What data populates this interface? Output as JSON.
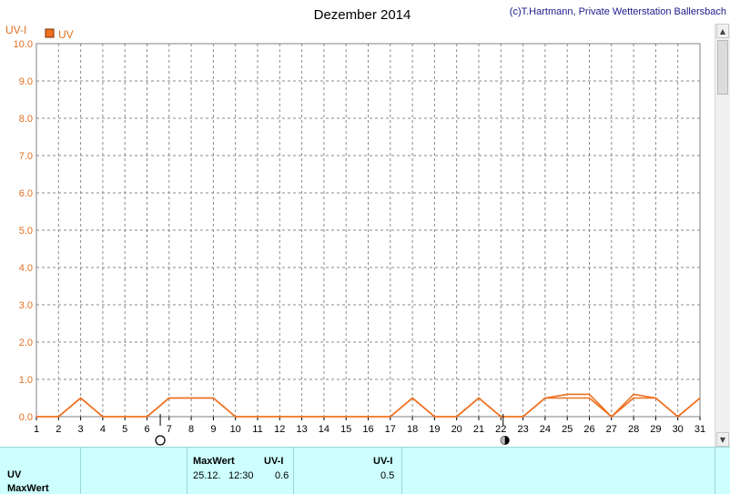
{
  "chart_data": {
    "type": "line",
    "title": "Dezember 2014",
    "copyright": "(c)T.Hartmann, Private Wetterstation Ballersbach",
    "ylabel": "UV-I",
    "ylim": [
      0,
      10
    ],
    "yticks": [
      "0.0",
      "1.0",
      "2.0",
      "3.0",
      "4.0",
      "5.0",
      "6.0",
      "7.0",
      "8.0",
      "9.0",
      "10.0"
    ],
    "xlim": [
      1,
      31
    ],
    "xticks": [
      "1",
      "2",
      "3",
      "4",
      "5",
      "6",
      "7",
      "8",
      "9",
      "10",
      "11",
      "12",
      "13",
      "14",
      "15",
      "16",
      "17",
      "18",
      "19",
      "20",
      "21",
      "22",
      "23",
      "24",
      "25",
      "26",
      "27",
      "28",
      "29",
      "30",
      "31"
    ],
    "grid": true,
    "legend": "top-left",
    "moon_phases": [
      {
        "day": 6.6,
        "phase": "full-moon"
      },
      {
        "day": 22.1,
        "phase": "new-moon"
      }
    ],
    "series": [
      {
        "name": "UV",
        "color": "#f07020",
        "x": [
          1,
          2,
          3,
          4,
          5,
          6,
          7,
          8,
          9,
          10,
          11,
          12,
          13,
          14,
          15,
          16,
          17,
          18,
          19,
          20,
          21,
          22,
          23,
          24,
          25,
          26,
          27,
          28,
          29,
          30,
          31
        ],
        "y": [
          0,
          0,
          0.5,
          0,
          0,
          0,
          0.5,
          0.5,
          0.5,
          0,
          0,
          0,
          0,
          0,
          0,
          0,
          0,
          0.5,
          0,
          0,
          0.5,
          0,
          0,
          0.5,
          0.6,
          0.6,
          0,
          0.6,
          0.5,
          0,
          0.5
        ]
      },
      {
        "color": "#f07020",
        "x": [
          1,
          2,
          3,
          4,
          5,
          6,
          7,
          8,
          9,
          10,
          11,
          12,
          13,
          14,
          15,
          16,
          17,
          18,
          19,
          20,
          21,
          22,
          23,
          24,
          25,
          26,
          27,
          28,
          29,
          30,
          31
        ],
        "y": [
          0,
          0,
          0.5,
          0,
          0,
          0,
          0.5,
          0.5,
          0.5,
          0,
          0,
          0,
          0,
          0,
          0,
          0,
          0,
          0.5,
          0,
          0,
          0.5,
          0,
          0,
          0.5,
          0.5,
          0.5,
          0,
          0.5,
          0.5,
          0,
          0.5
        ]
      }
    ]
  },
  "panel": {
    "row_label": "UV",
    "row_label2": "MaxWert",
    "max_header": "MaxWert",
    "unit_header": "UV-I",
    "max_date": "25.12.",
    "max_time": "12:30",
    "max_value": "0.6",
    "avg_header": "UV-I",
    "avg_value": "0.5"
  },
  "scrollbar": {
    "up_icon": "arrow-up-icon",
    "down_icon": "arrow-down-icon"
  }
}
